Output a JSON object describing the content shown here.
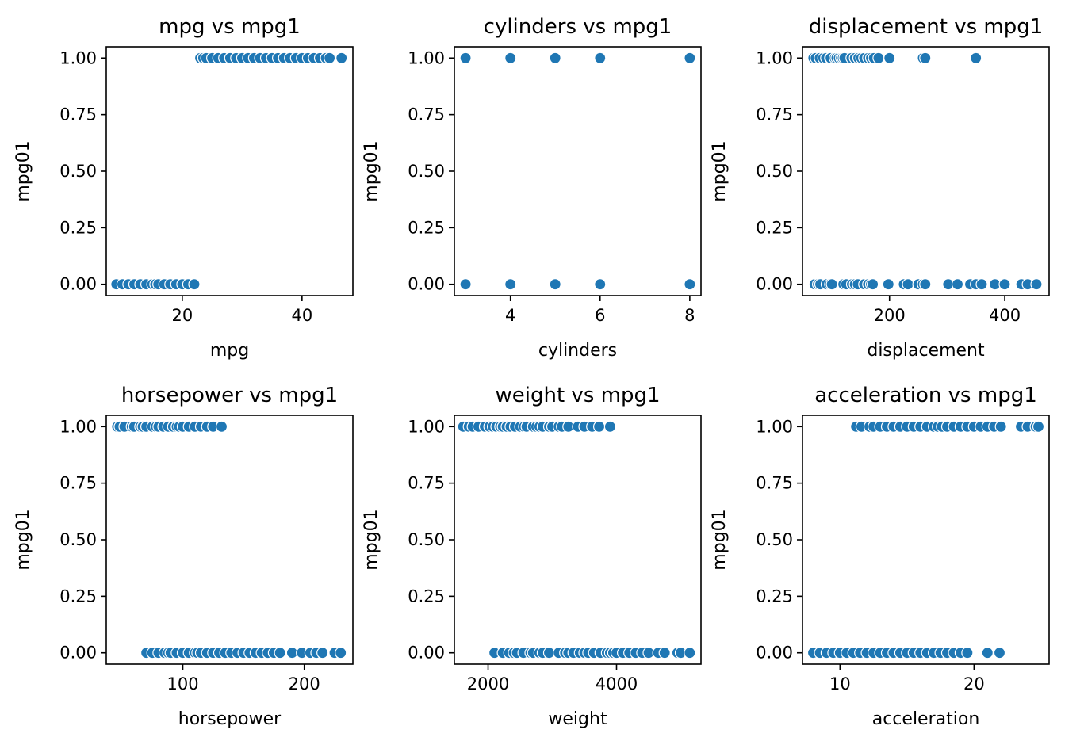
{
  "chart_data": [
    {
      "type": "scatter",
      "title": "mpg vs mpg1",
      "xlabel": "mpg",
      "ylabel": "mpg01",
      "xlim": [
        7.3,
        48.5
      ],
      "ylim": [
        -0.05,
        1.05
      ],
      "xticks": [
        20,
        40
      ],
      "yticks": [
        "0.00",
        "0.25",
        "0.50",
        "0.75",
        "1.00"
      ],
      "x": [
        9,
        10,
        11,
        12,
        13,
        14,
        15,
        15.5,
        16,
        17,
        18,
        19,
        20,
        21,
        22,
        23,
        23.5,
        24,
        25,
        26,
        27,
        28,
        29,
        30,
        31,
        32,
        33,
        34,
        35,
        36,
        37,
        38,
        39,
        40,
        41,
        42,
        43,
        44,
        44.6,
        46.6
      ],
      "y": [
        0,
        0,
        0,
        0,
        0,
        0,
        0,
        0,
        0,
        0,
        0,
        0,
        0,
        0,
        0,
        1,
        1,
        1,
        1,
        1,
        1,
        1,
        1,
        1,
        1,
        1,
        1,
        1,
        1,
        1,
        1,
        1,
        1,
        1,
        1,
        1,
        1,
        1,
        1,
        1
      ]
    },
    {
      "type": "scatter",
      "title": "cylinders vs mpg1",
      "xlabel": "cylinders",
      "ylabel": "mpg01",
      "xlim": [
        2.75,
        8.25
      ],
      "ylim": [
        -0.05,
        1.05
      ],
      "xticks": [
        4,
        6,
        8
      ],
      "yticks": [
        "0.00",
        "0.25",
        "0.50",
        "0.75",
        "1.00"
      ],
      "x": [
        3,
        4,
        5,
        6,
        8,
        3,
        4,
        5,
        6,
        8
      ],
      "y": [
        1,
        1,
        1,
        1,
        1,
        0,
        0,
        0,
        0,
        0
      ]
    },
    {
      "type": "scatter",
      "title": "displacement vs mpg1",
      "xlabel": "displacement",
      "ylabel": "mpg01",
      "xlim": [
        49,
        477
      ],
      "ylim": [
        -0.05,
        1.05
      ],
      "xticks": [
        200,
        400
      ],
      "yticks": [
        "0.00",
        "0.25",
        "0.50",
        "0.75",
        "1.00"
      ],
      "x": [
        68,
        72,
        79,
        85,
        90,
        97,
        98,
        105,
        108,
        112,
        116,
        119,
        122,
        134,
        140,
        146,
        151,
        156,
        163,
        168,
        173,
        181,
        200,
        258,
        262,
        350,
        70,
        76,
        80,
        91,
        97,
        100,
        120,
        125,
        135,
        140,
        145,
        156,
        163,
        168,
        171,
        198,
        225,
        232,
        250,
        258,
        262,
        302,
        318,
        340,
        350,
        360,
        383,
        400,
        429,
        440,
        455
      ],
      "y": [
        1,
        1,
        1,
        1,
        1,
        1,
        1,
        1,
        1,
        1,
        1,
        1,
        1,
        1,
        1,
        1,
        1,
        1,
        1,
        1,
        1,
        1,
        1,
        1,
        1,
        1,
        0,
        0,
        0,
        0,
        0,
        0,
        0,
        0,
        0,
        0,
        0,
        0,
        0,
        0,
        0,
        0,
        0,
        0,
        0,
        0,
        0,
        0,
        0,
        0,
        0,
        0,
        0,
        0,
        0,
        0,
        0
      ]
    },
    {
      "type": "scatter",
      "title": "horsepower vs mpg1",
      "xlabel": "horsepower",
      "ylabel": "mpg01",
      "xlim": [
        37,
        240
      ],
      "ylim": [
        -0.05,
        1.05
      ],
      "xticks": [
        100,
        200
      ],
      "yticks": [
        "0.00",
        "0.25",
        "0.50",
        "0.75",
        "1.00"
      ],
      "x": [
        46,
        48,
        52,
        58,
        60,
        65,
        67,
        70,
        75,
        78,
        80,
        84,
        88,
        92,
        95,
        97,
        100,
        105,
        110,
        115,
        120,
        125,
        132,
        70,
        75,
        80,
        85,
        88,
        90,
        95,
        100,
        105,
        110,
        112,
        115,
        120,
        125,
        130,
        135,
        140,
        145,
        150,
        155,
        160,
        165,
        170,
        175,
        180,
        190,
        198,
        205,
        210,
        215,
        225,
        230
      ],
      "y": [
        1,
        1,
        1,
        1,
        1,
        1,
        1,
        1,
        1,
        1,
        1,
        1,
        1,
        1,
        1,
        1,
        1,
        1,
        1,
        1,
        1,
        1,
        1,
        0,
        0,
        0,
        0,
        0,
        0,
        0,
        0,
        0,
        0,
        0,
        0,
        0,
        0,
        0,
        0,
        0,
        0,
        0,
        0,
        0,
        0,
        0,
        0,
        0,
        0,
        0,
        0,
        0,
        0,
        0,
        0
      ]
    },
    {
      "type": "scatter",
      "title": "weight vs mpg1",
      "xlabel": "weight",
      "ylabel": "mpg01",
      "xlim": [
        1475,
        5315
      ],
      "ylim": [
        -0.05,
        1.05
      ],
      "xticks": [
        2000,
        4000
      ],
      "yticks": [
        "0.00",
        "0.25",
        "0.50",
        "0.75",
        "1.00"
      ],
      "x": [
        1613,
        1700,
        1760,
        1850,
        1950,
        2020,
        2075,
        2130,
        2190,
        2230,
        2290,
        2350,
        2420,
        2500,
        2560,
        2600,
        2700,
        2750,
        2800,
        2850,
        2950,
        3000,
        3100,
        3150,
        3250,
        3400,
        3500,
        3620,
        3730,
        3900,
        2100,
        2230,
        2330,
        2400,
        2450,
        2550,
        2660,
        2700,
        2800,
        2850,
        2950,
        3100,
        3200,
        3250,
        3330,
        3430,
        3500,
        3560,
        3650,
        3750,
        3850,
        3900,
        3950,
        4000,
        4100,
        4200,
        4300,
        4400,
        4500,
        4650,
        4750,
        4950,
        5000,
        5140
      ],
      "y": [
        1,
        1,
        1,
        1,
        1,
        1,
        1,
        1,
        1,
        1,
        1,
        1,
        1,
        1,
        1,
        1,
        1,
        1,
        1,
        1,
        1,
        1,
        1,
        1,
        1,
        1,
        1,
        1,
        1,
        1,
        0,
        0,
        0,
        0,
        0,
        0,
        0,
        0,
        0,
        0,
        0,
        0,
        0,
        0,
        0,
        0,
        0,
        0,
        0,
        0,
        0,
        0,
        0,
        0,
        0,
        0,
        0,
        0,
        0,
        0,
        0,
        0,
        0,
        0
      ]
    },
    {
      "type": "scatter",
      "title": "acceleration vs mpg1",
      "xlabel": "acceleration",
      "ylabel": "mpg01",
      "xlim": [
        7.2,
        25.6
      ],
      "ylim": [
        -0.05,
        1.05
      ],
      "xticks": [
        10,
        20
      ],
      "yticks": [
        "0.00",
        "0.25",
        "0.50",
        "0.75",
        "1.00"
      ],
      "x": [
        11.2,
        11.6,
        12.2,
        12.5,
        13,
        13.5,
        14,
        14.5,
        15,
        15.5,
        16,
        16.5,
        17,
        17.3,
        17.6,
        18,
        18.5,
        19,
        19.5,
        20,
        20.5,
        21,
        21.5,
        22,
        23.5,
        24,
        24.6,
        24.8,
        8,
        8.5,
        9,
        9.5,
        10,
        10.5,
        11,
        11.5,
        12,
        12.5,
        13,
        13.5,
        14,
        14.5,
        15,
        15.5,
        16,
        16.5,
        17,
        17.5,
        18,
        18.5,
        19,
        19.5,
        21,
        21.9
      ],
      "y": [
        1,
        1,
        1,
        1,
        1,
        1,
        1,
        1,
        1,
        1,
        1,
        1,
        1,
        1,
        1,
        1,
        1,
        1,
        1,
        1,
        1,
        1,
        1,
        1,
        1,
        1,
        1,
        1,
        0,
        0,
        0,
        0,
        0,
        0,
        0,
        0,
        0,
        0,
        0,
        0,
        0,
        0,
        0,
        0,
        0,
        0,
        0,
        0,
        0,
        0,
        0,
        0,
        0,
        0
      ]
    }
  ]
}
